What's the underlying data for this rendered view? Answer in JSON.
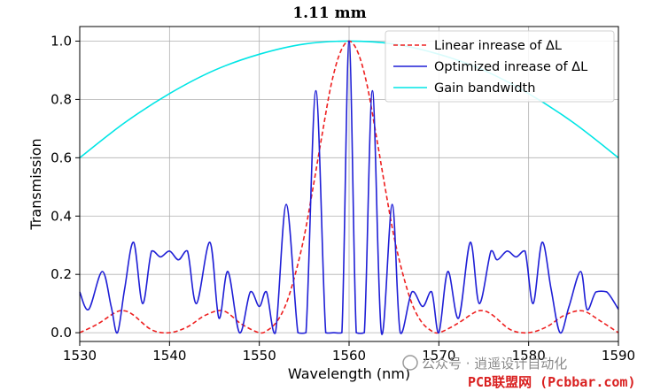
{
  "chart_data": {
    "type": "line",
    "title": "1.11 mm",
    "xlabel": "Wavelength (nm)",
    "ylabel": "Transmission",
    "xlim": [
      1530,
      1590
    ],
    "ylim": [
      -0.03,
      1.05
    ],
    "xticks": [
      1530,
      1540,
      1550,
      1560,
      1570,
      1580,
      1590
    ],
    "xtick_labels": [
      "1530",
      "1540",
      "1550",
      "1560",
      "1570",
      "1580",
      "1590"
    ],
    "yticks": [
      0.0,
      0.2,
      0.4,
      0.6,
      0.8,
      1.0
    ],
    "ytick_labels": [
      "0.0",
      "0.2",
      "0.4",
      "0.6",
      "0.8",
      "1.0"
    ],
    "grid": true,
    "legend_position": "top-right",
    "series": [
      {
        "name": "Linear inrease of ΔL",
        "color": "#ee2020",
        "style": "dashed",
        "x": [
          1530,
          1532,
          1534,
          1535,
          1536,
          1538,
          1540,
          1542,
          1544,
          1546,
          1548,
          1550,
          1551,
          1552,
          1553,
          1554,
          1555,
          1556,
          1557,
          1558,
          1559,
          1560,
          1561,
          1562,
          1563,
          1564,
          1565,
          1566,
          1567,
          1568,
          1569,
          1570,
          1572,
          1574,
          1575,
          1576,
          1578,
          1580,
          1582,
          1584,
          1586,
          1588,
          1590
        ],
        "values": [
          0.0,
          0.03,
          0.07,
          0.075,
          0.06,
          0.01,
          0.0,
          0.02,
          0.06,
          0.075,
          0.03,
          0.0,
          0.01,
          0.04,
          0.1,
          0.2,
          0.33,
          0.5,
          0.68,
          0.85,
          0.96,
          1.0,
          0.96,
          0.85,
          0.68,
          0.5,
          0.33,
          0.2,
          0.1,
          0.04,
          0.01,
          0.0,
          0.03,
          0.07,
          0.075,
          0.06,
          0.01,
          0.0,
          0.02,
          0.06,
          0.075,
          0.04,
          0.0
        ]
      },
      {
        "name": "Optimized inrease of ΔL",
        "color": "#1f1fd6",
        "style": "solid",
        "x": [
          1530,
          1531,
          1532.5,
          1533.5,
          1534.2,
          1535,
          1536,
          1537,
          1538,
          1539,
          1540,
          1541,
          1542,
          1543,
          1544.5,
          1545.5,
          1546.5,
          1547.8,
          1549,
          1550,
          1550.8,
          1551.8,
          1553,
          1554.3,
          1555.2,
          1556.3,
          1557.4,
          1558.3,
          1559.2,
          1560,
          1560.8,
          1561.7,
          1562.6,
          1563.6,
          1564.8,
          1565.7,
          1567,
          1568.2,
          1569.2,
          1570,
          1571,
          1572.2,
          1573.5,
          1574.5,
          1575.8,
          1576.5,
          1577.6,
          1578.6,
          1579.6,
          1580.5,
          1581.5,
          1582.5,
          1583.5,
          1584.5,
          1585.8,
          1586.5,
          1587.5,
          1588.7,
          1590
        ],
        "values": [
          0.14,
          0.08,
          0.21,
          0.09,
          0.0,
          0.15,
          0.31,
          0.1,
          0.28,
          0.26,
          0.28,
          0.25,
          0.28,
          0.1,
          0.31,
          0.05,
          0.21,
          0.0,
          0.14,
          0.09,
          0.14,
          0.0,
          0.44,
          0.0,
          0.0,
          0.83,
          0.0,
          0.0,
          0.0,
          1.0,
          0.0,
          0.0,
          0.83,
          0.0,
          0.44,
          0.0,
          0.14,
          0.09,
          0.14,
          0.0,
          0.21,
          0.05,
          0.31,
          0.1,
          0.28,
          0.25,
          0.28,
          0.26,
          0.28,
          0.1,
          0.31,
          0.15,
          0.0,
          0.09,
          0.21,
          0.08,
          0.14,
          0.14,
          0.08
        ]
      },
      {
        "name": "Gain bandwidth",
        "color": "#00e5e5",
        "style": "solid",
        "x": [
          1530,
          1535,
          1540,
          1545,
          1550,
          1555,
          1560,
          1565,
          1570,
          1575,
          1580,
          1585,
          1590
        ],
        "values": [
          0.6,
          0.72,
          0.82,
          0.9,
          0.955,
          0.99,
          1.0,
          0.99,
          0.955,
          0.9,
          0.82,
          0.72,
          0.6
        ]
      }
    ]
  },
  "watermark": {
    "line1": "公众号 · 逍遥设计自动化",
    "line2": "PCB联盟网 (Pcbbar.com)"
  }
}
